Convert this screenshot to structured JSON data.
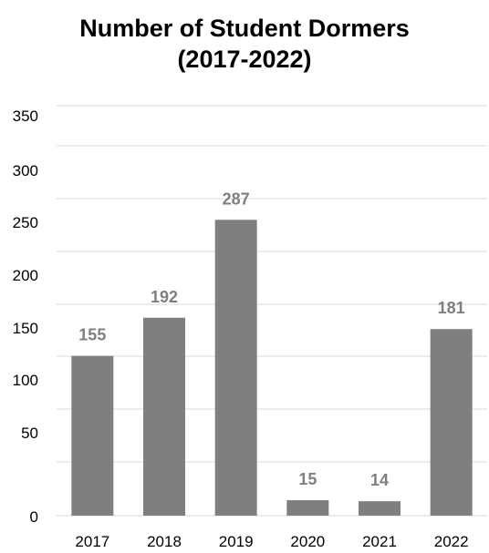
{
  "chart_data": {
    "type": "bar",
    "title_lines": [
      "Number of Student Dormers",
      "(2017-2022)"
    ],
    "categories": [
      "2017",
      "2018",
      "2019",
      "2020",
      "2021",
      "2022"
    ],
    "values": [
      155,
      192,
      287,
      15,
      14,
      181
    ],
    "data_labels": [
      "155",
      "192",
      "287",
      "15",
      "14",
      "181"
    ],
    "y_tick_labels": [
      "0",
      "50",
      "100",
      "150",
      "200",
      "250",
      "300",
      "350"
    ],
    "ylim": [
      0,
      350
    ],
    "xlabel": "",
    "ylabel": "",
    "grid": true,
    "legend": "none",
    "colors": {
      "bar": "#7f7f7f",
      "data_label": "#7f7f7f",
      "grid": "#d9d9d9"
    }
  }
}
